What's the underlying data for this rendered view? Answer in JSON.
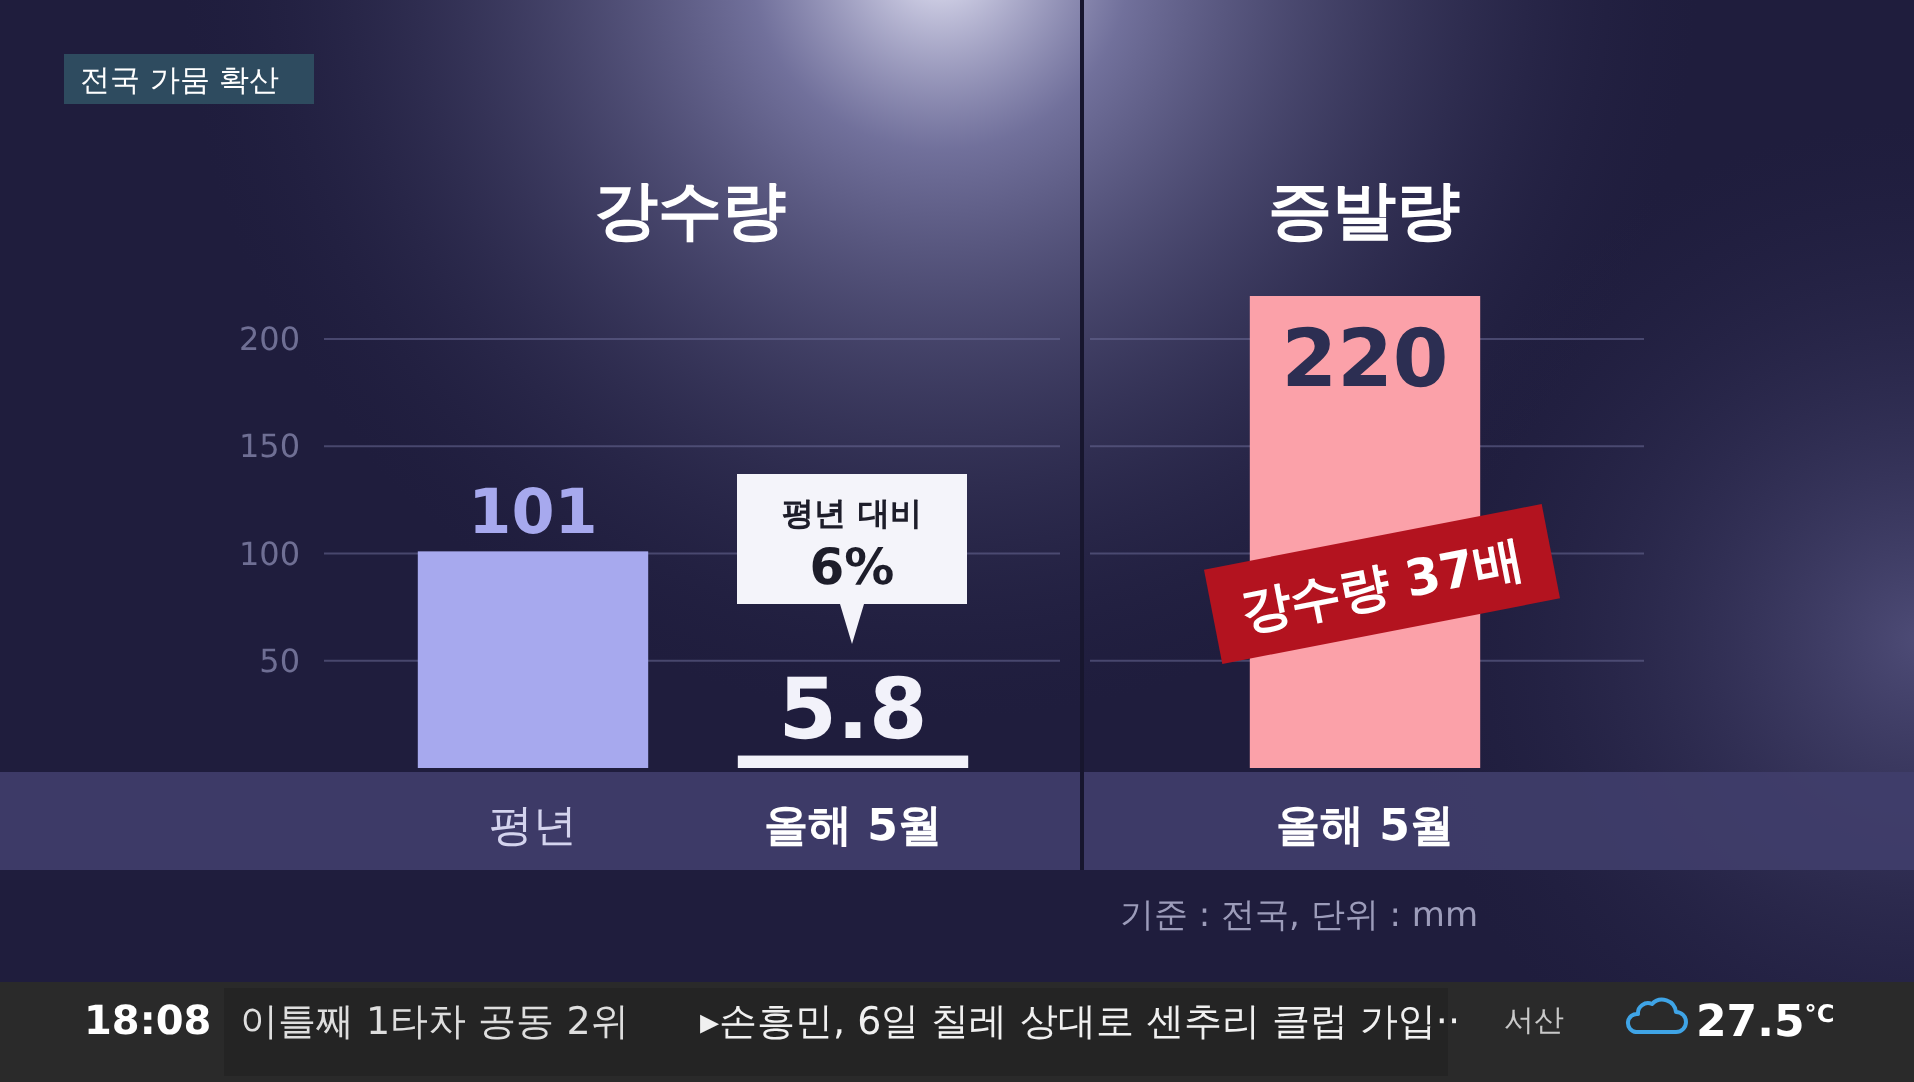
{
  "chart_data": [
    {
      "type": "bar",
      "title": "강수량",
      "categories": [
        "평년",
        "올해 5월"
      ],
      "values": [
        101,
        5.8
      ],
      "colors": [
        "#a7a9ee",
        "#f2f2fa"
      ],
      "ylim": [
        0,
        200
      ],
      "yticks": [
        50,
        100,
        150,
        200
      ],
      "grid": "y",
      "data_labels": true,
      "annotations": [
        "전국 가뭄 확산",
        "평년 대비\n6%",
        "18:08",
        "이틀째 1타차 공동 2위",
        "▸손흥민, 6일 칠레 상대로 센추리 클럽 가입··",
        "서산",
        "27.5$^{°C}$"
      ]
    },
    {
      "type": "bar",
      "title": "증발량",
      "categories": [
        "올해 5월"
      ],
      "values": [
        220
      ],
      "colors": [
        "#fba1a9"
      ],
      "ylim": [
        0,
        220
      ],
      "yticks": [
        50,
        100,
        150,
        200
      ],
      "grid": "y",
      "tick_labels": "x",
      "data_labels": true,
      "annotations": [
        "강수량 37배",
        "기준 : 전국, 단위 : mm"
      ]
    }
  ]
}
